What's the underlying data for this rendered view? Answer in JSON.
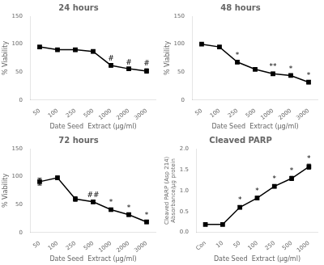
{
  "chart_data": [
    {
      "type": "line",
      "title": "24 hours",
      "x_label": "Date Seed  Extract (μg/ml)",
      "y_label": "% Viability",
      "categories": [
        "50",
        "100",
        "250",
        "500",
        "1000",
        "2000",
        "3000"
      ],
      "values": [
        95,
        90,
        90,
        87,
        62,
        56,
        52
      ],
      "yerr": [
        2,
        2,
        3,
        3,
        3,
        2,
        4
      ],
      "annotations": [
        {
          "category": "1000",
          "text": "#"
        },
        {
          "category": "2000",
          "text": "#"
        },
        {
          "category": "3000",
          "text": "#"
        }
      ],
      "color": "#000000",
      "marker": "square",
      "line_style": "solid",
      "ylim": [
        0,
        150
      ],
      "yticks": [
        0,
        50,
        100,
        150
      ],
      "grid": false
    },
    {
      "type": "line",
      "title": "48 hours",
      "x_label": "Date Seed  Extract (μg/ml)",
      "y_label": "% Viability",
      "categories": [
        "50",
        "100",
        "250",
        "500",
        "1000",
        "2000",
        "3000"
      ],
      "values": [
        100,
        95,
        68,
        55,
        47,
        44,
        32
      ],
      "yerr": [
        1,
        2,
        3,
        2,
        3,
        2,
        3
      ],
      "annotations": [
        {
          "category": "250",
          "text": "*"
        },
        {
          "category": "1000",
          "text": "**"
        },
        {
          "category": "2000",
          "text": "*"
        },
        {
          "category": "3000",
          "text": "*"
        }
      ],
      "color": "#000000",
      "marker": "square",
      "line_style": "solid",
      "ylim": [
        0,
        150
      ],
      "yticks": [
        0,
        50,
        100,
        150
      ],
      "grid": false
    },
    {
      "type": "line",
      "title": "72 hours",
      "x_label": "Date Seed  Extract (μg/ml)",
      "y_label": "% Viability",
      "categories": [
        "50",
        "100",
        "250",
        "500",
        "1000",
        "2000",
        "3000"
      ],
      "values": [
        91,
        98,
        60,
        55,
        41,
        32,
        19
      ],
      "yerr": [
        6,
        3,
        4,
        3,
        3,
        3,
        3
      ],
      "annotations": [
        {
          "category": "500",
          "text": "##"
        },
        {
          "category": "1000",
          "text": "*"
        },
        {
          "category": "2000",
          "text": "*"
        },
        {
          "category": "3000",
          "text": "*"
        }
      ],
      "color": "#000000",
      "marker": "square",
      "line_style": "solid",
      "ylim": [
        0,
        150
      ],
      "yticks": [
        0,
        50,
        100,
        150
      ],
      "grid": false
    },
    {
      "type": "line",
      "title": "Cleaved PARP",
      "x_label": "Date Seed  Extract (μg/ml)",
      "y_label": "Cleaved PARP (Asp 214)\nAbsorbance/μg protein",
      "categories": [
        "Con",
        "10",
        "50",
        "100",
        "250",
        "500",
        "1000"
      ],
      "values": [
        0.19,
        0.19,
        0.6,
        0.82,
        1.1,
        1.29,
        1.57
      ],
      "yerr": [
        0.02,
        0.02,
        0.04,
        0.04,
        0.04,
        0.05,
        0.06
      ],
      "annotations": [
        {
          "category": "50",
          "text": "*"
        },
        {
          "category": "100",
          "text": "*"
        },
        {
          "category": "250",
          "text": "*"
        },
        {
          "category": "500",
          "text": "*"
        },
        {
          "category": "1000",
          "text": "*"
        }
      ],
      "color": "#000000",
      "marker": "square",
      "line_style": "solid",
      "ylim": [
        0,
        2.0
      ],
      "yticks": [
        {
          "value": 0.0,
          "label": "0.0"
        },
        {
          "value": 0.5,
          "label": "0.5"
        },
        {
          "value": 1.0,
          "label": "1.0"
        },
        {
          "value": 1.5,
          "label": "1.5"
        },
        {
          "value": 2.0,
          "label": "2.0"
        }
      ],
      "grid": false
    }
  ]
}
